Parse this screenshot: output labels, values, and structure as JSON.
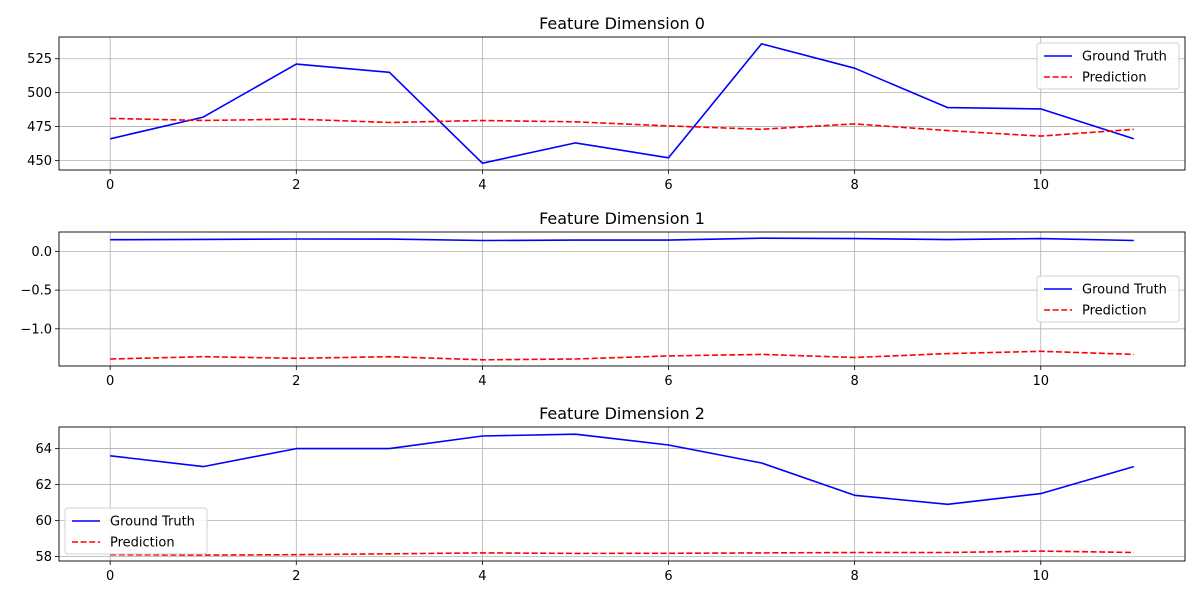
{
  "chart_data": [
    {
      "type": "line",
      "title": "Feature Dimension 0",
      "xlabel": "",
      "ylabel": "",
      "x": [
        0,
        1,
        2,
        3,
        4,
        5,
        6,
        7,
        8,
        9,
        10,
        11
      ],
      "xlim": [
        -0.55,
        11.55
      ],
      "ylim": [
        443,
        541
      ],
      "xticks": [
        0,
        2,
        4,
        6,
        8,
        10
      ],
      "yticks": [
        450,
        475,
        500,
        525
      ],
      "grid": true,
      "legend": "upper right",
      "series": [
        {
          "name": "Ground Truth",
          "color": "#0000ff",
          "dash": "solid",
          "values": [
            466,
            482,
            521,
            515,
            448,
            463,
            452,
            536,
            518,
            489,
            488,
            466
          ]
        },
        {
          "name": "Prediction",
          "color": "#ff0000",
          "dash": "dashed",
          "values": [
            481,
            479.5,
            480.5,
            478,
            479.5,
            478.5,
            475.5,
            473,
            477,
            472,
            468,
            473
          ]
        }
      ]
    },
    {
      "type": "line",
      "title": "Feature Dimension 1",
      "xlabel": "",
      "ylabel": "",
      "x": [
        0,
        1,
        2,
        3,
        4,
        5,
        6,
        7,
        8,
        9,
        10,
        11
      ],
      "xlim": [
        -0.55,
        11.55
      ],
      "ylim": [
        -1.48,
        0.25
      ],
      "xticks": [
        0,
        2,
        4,
        6,
        8,
        10
      ],
      "yticks": [
        -1.0,
        -0.5,
        0.0
      ],
      "ytick_labels": [
        "−1.0",
        "−0.5",
        "0.0"
      ],
      "grid": true,
      "legend": "center right",
      "series": [
        {
          "name": "Ground Truth",
          "color": "#0000ff",
          "dash": "solid",
          "values": [
            0.15,
            0.155,
            0.16,
            0.158,
            0.14,
            0.145,
            0.145,
            0.17,
            0.165,
            0.152,
            0.165,
            0.14
          ]
        },
        {
          "name": "Prediction",
          "color": "#ff0000",
          "dash": "dashed",
          "values": [
            -1.39,
            -1.36,
            -1.38,
            -1.36,
            -1.4,
            -1.39,
            -1.35,
            -1.33,
            -1.37,
            -1.32,
            -1.29,
            -1.33
          ]
        }
      ]
    },
    {
      "type": "line",
      "title": "Feature Dimension 2",
      "xlabel": "",
      "ylabel": "",
      "x": [
        0,
        1,
        2,
        3,
        4,
        5,
        6,
        7,
        8,
        9,
        10,
        11
      ],
      "xlim": [
        -0.55,
        11.55
      ],
      "ylim": [
        57.75,
        65.2
      ],
      "xticks": [
        0,
        2,
        4,
        6,
        8,
        10
      ],
      "yticks": [
        58,
        60,
        62,
        64
      ],
      "grid": true,
      "legend": "lower left",
      "series": [
        {
          "name": "Ground Truth",
          "color": "#0000ff",
          "dash": "solid",
          "values": [
            63.6,
            63.0,
            64.0,
            64.0,
            64.7,
            64.8,
            64.2,
            63.2,
            61.4,
            60.9,
            61.5,
            63.0
          ]
        },
        {
          "name": "Prediction",
          "color": "#ff0000",
          "dash": "dashed",
          "values": [
            58.1,
            58.08,
            58.1,
            58.15,
            58.2,
            58.17,
            58.18,
            58.2,
            58.22,
            58.22,
            58.3,
            58.22
          ]
        }
      ]
    }
  ]
}
